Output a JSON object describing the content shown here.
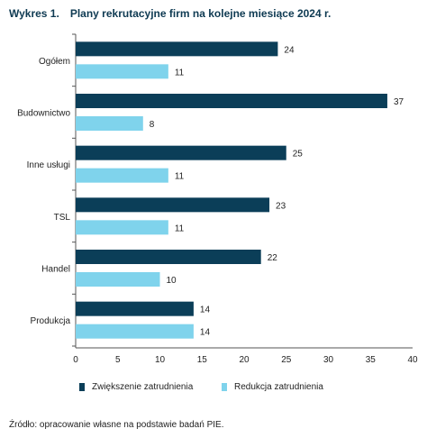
{
  "header": {
    "number": "Wykres 1.",
    "title": "Plany rekrutacyjne firm na kolejne miesiące 2024 r."
  },
  "chart_data": {
    "type": "bar",
    "orientation": "horizontal",
    "categories": [
      "Ogółem",
      "Budownictwo",
      "Inne usługi",
      "TSL",
      "Handel",
      "Produkcja"
    ],
    "series": [
      {
        "name": "Zwiększenie zatrudnienia",
        "color": "#0b3e58",
        "values": [
          24,
          37,
          25,
          23,
          22,
          14
        ]
      },
      {
        "name": "Redukcja zatrudnienia",
        "color": "#7fd3ec",
        "values": [
          11,
          8,
          11,
          11,
          10,
          14
        ]
      }
    ],
    "xlim": [
      0,
      40
    ],
    "xticks": [
      "0",
      "5",
      "10",
      "15",
      "20",
      "25",
      "30",
      "35",
      "40"
    ],
    "grid": false,
    "legend_position": "bottom"
  },
  "legend": {
    "items": [
      {
        "label": "Zwiększenie zatrudnienia",
        "color": "#0b3e58"
      },
      {
        "label": "Redukcja zatrudnienia",
        "color": "#7fd3ec"
      }
    ]
  },
  "source": "Źródło: opracowanie własne na podstawie badań PIE."
}
